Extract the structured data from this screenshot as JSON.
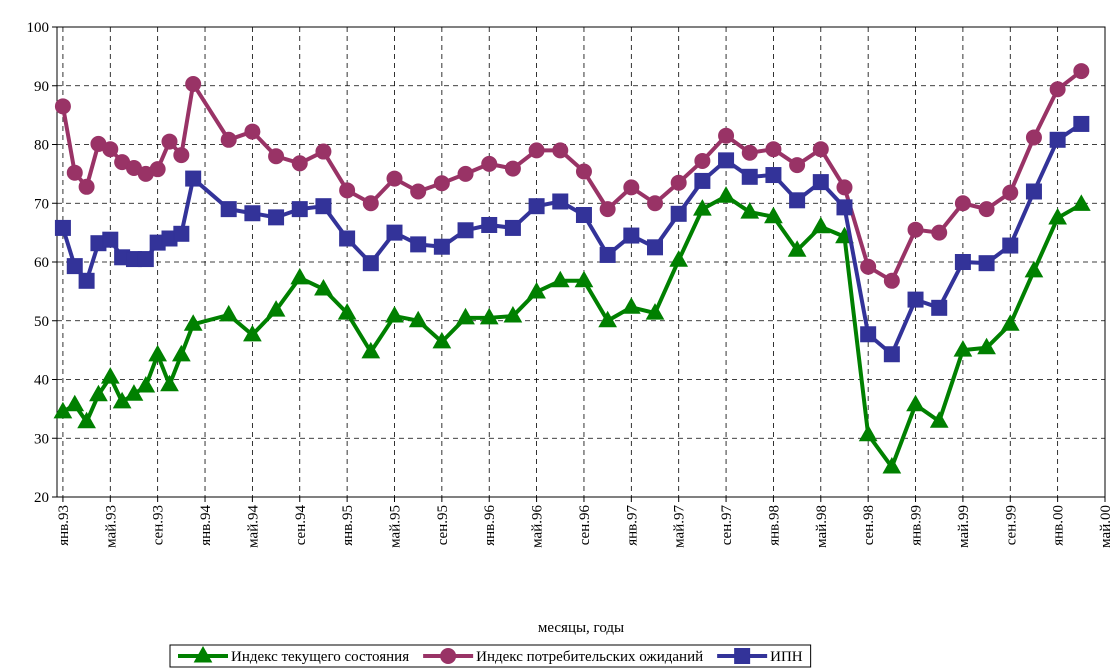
{
  "chart_data": {
    "type": "line",
    "xlabel": "месяцы, годы",
    "x": [
      0,
      1,
      2,
      3,
      4,
      5,
      6,
      7,
      8,
      9,
      10,
      11,
      14,
      16,
      18,
      20,
      22,
      24,
      26,
      28,
      30,
      32,
      34,
      36,
      38,
      40,
      42,
      44,
      46,
      48,
      50,
      52,
      54,
      56,
      58,
      60,
      62,
      64,
      66,
      68,
      70,
      72,
      74,
      76,
      78,
      80,
      82,
      84,
      86
    ],
    "xlim": [
      -0.5,
      88
    ],
    "xticks": [
      {
        "value": 0,
        "label": "янв.93"
      },
      {
        "value": 4,
        "label": "май.93"
      },
      {
        "value": 8,
        "label": "сен.93"
      },
      {
        "value": 12,
        "label": "янв.94"
      },
      {
        "value": 16,
        "label": "май.94"
      },
      {
        "value": 20,
        "label": "сен.94"
      },
      {
        "value": 24,
        "label": "янв.95"
      },
      {
        "value": 28,
        "label": "май.95"
      },
      {
        "value": 32,
        "label": "сен.95"
      },
      {
        "value": 36,
        "label": "янв.96"
      },
      {
        "value": 40,
        "label": "май.96"
      },
      {
        "value": 44,
        "label": "сен.96"
      },
      {
        "value": 48,
        "label": "янв.97"
      },
      {
        "value": 52,
        "label": "май.97"
      },
      {
        "value": 56,
        "label": "сен.97"
      },
      {
        "value": 60,
        "label": "янв.98"
      },
      {
        "value": 64,
        "label": "май.98"
      },
      {
        "value": 68,
        "label": "сен.98"
      },
      {
        "value": 72,
        "label": "янв.99"
      },
      {
        "value": 76,
        "label": "май.99"
      },
      {
        "value": 80,
        "label": "сен.99"
      },
      {
        "value": 84,
        "label": "янв.00"
      },
      {
        "value": 88,
        "label": "май.00"
      }
    ],
    "ylim": [
      20,
      100
    ],
    "yticks": [
      20,
      30,
      40,
      50,
      60,
      70,
      80,
      90,
      100
    ],
    "grid": true,
    "legend": "bottom",
    "series": [
      {
        "name": "Индекс текущего состояния",
        "color": "#008000",
        "marker": "triangle",
        "values": [
          34.5,
          35.7,
          32.8,
          37.4,
          40.4,
          36.2,
          37.5,
          38.9,
          44.2,
          39.1,
          44.2,
          49.4,
          51.0,
          47.6,
          51.8,
          57.3,
          55.4,
          51.3,
          44.7,
          50.8,
          50.0,
          46.4,
          50.5,
          50.5,
          50.8,
          54.9,
          56.8,
          56.8,
          50.0,
          52.3,
          51.3,
          60.3,
          69.0,
          71.2,
          68.5,
          67.7,
          62.0,
          66.0,
          64.3,
          30.6,
          25.1,
          35.7,
          32.9,
          45.0,
          45.4,
          49.4,
          58.5,
          67.5,
          69.8
        ]
      },
      {
        "name": "Индекс потребительских ожиданий",
        "color": "#993366",
        "marker": "circle",
        "values": [
          86.5,
          75.2,
          72.8,
          80.1,
          79.2,
          77.0,
          76.0,
          75.0,
          75.8,
          80.5,
          78.2,
          90.3,
          80.8,
          82.2,
          78.0,
          76.8,
          78.8,
          72.2,
          70.0,
          74.2,
          72.0,
          73.4,
          75.0,
          76.7,
          75.9,
          79.0,
          79.0,
          75.4,
          69.0,
          72.7,
          70.0,
          73.5,
          77.2,
          81.5,
          78.6,
          79.2,
          76.5,
          79.2,
          72.7,
          59.2,
          56.8,
          65.5,
          65.0,
          70.0,
          69.0,
          71.8,
          81.2,
          89.4,
          92.5
        ]
      },
      {
        "name": "ИПН",
        "color": "#333399",
        "marker": "square",
        "values": [
          65.8,
          59.3,
          56.8,
          63.2,
          63.8,
          60.8,
          60.5,
          60.5,
          63.3,
          64.0,
          64.8,
          74.2,
          69.0,
          68.3,
          67.6,
          69.0,
          69.5,
          64.0,
          59.8,
          65.0,
          63.0,
          62.6,
          65.4,
          66.3,
          65.8,
          69.5,
          70.3,
          68.0,
          61.2,
          64.5,
          62.5,
          68.2,
          73.8,
          77.3,
          74.5,
          74.8,
          70.5,
          73.6,
          69.3,
          47.7,
          44.3,
          53.6,
          52.2,
          60.0,
          59.8,
          62.8,
          72.0,
          80.8,
          83.5
        ]
      }
    ]
  }
}
